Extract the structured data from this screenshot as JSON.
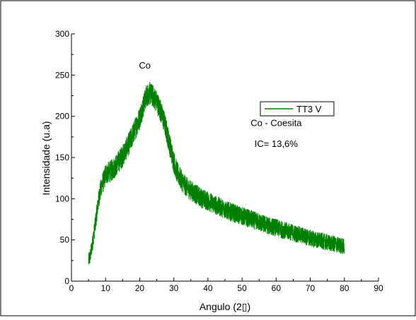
{
  "chart_data": {
    "type": "line",
    "title": "",
    "xlabel": "Angulo (2▯)",
    "ylabel": "Intensidade (u.a)",
    "xlim": [
      0,
      90
    ],
    "ylim": [
      0,
      300
    ],
    "xticks": [
      0,
      10,
      20,
      30,
      40,
      50,
      60,
      70,
      80,
      90
    ],
    "yticks": [
      0,
      50,
      100,
      150,
      200,
      250,
      300
    ],
    "grid": false,
    "legend_position": "top-right",
    "series": [
      {
        "name": "TT3 V",
        "color": "#008000",
        "x": [
          5,
          5.5,
          6,
          6.5,
          7,
          7.5,
          8,
          8.5,
          9,
          9.5,
          10,
          11,
          12,
          13,
          14,
          15,
          16,
          17,
          18,
          19,
          20,
          21,
          22,
          23,
          24,
          25,
          26,
          27,
          28,
          29,
          30,
          31,
          32,
          33,
          34,
          35,
          36,
          37,
          38,
          40,
          42,
          44,
          46,
          48,
          50,
          52,
          54,
          56,
          58,
          60,
          62,
          64,
          66,
          68,
          70,
          72,
          74,
          76,
          78,
          80
        ],
        "y": [
          25,
          30,
          42,
          55,
          70,
          85,
          100,
          110,
          118,
          122,
          130,
          132,
          135,
          140,
          146,
          152,
          160,
          168,
          178,
          188,
          198,
          212,
          225,
          228,
          224,
          218,
          208,
          196,
          180,
          162,
          145,
          132,
          124,
          118,
          113,
          110,
          107,
          104,
          101,
          97,
          93,
          89,
          85,
          82,
          79,
          76,
          73,
          70,
          67,
          65,
          62,
          60,
          57,
          55,
          52,
          50,
          48,
          46,
          44,
          42
        ],
        "noise": 14
      }
    ],
    "annotations": [
      {
        "text": "Co",
        "x": 21.5,
        "y": 258
      },
      {
        "text": "Co - Coesita",
        "x": 60,
        "y": 188
      },
      {
        "text": "IC= 13,6%",
        "x": 60,
        "y": 163
      }
    ]
  }
}
